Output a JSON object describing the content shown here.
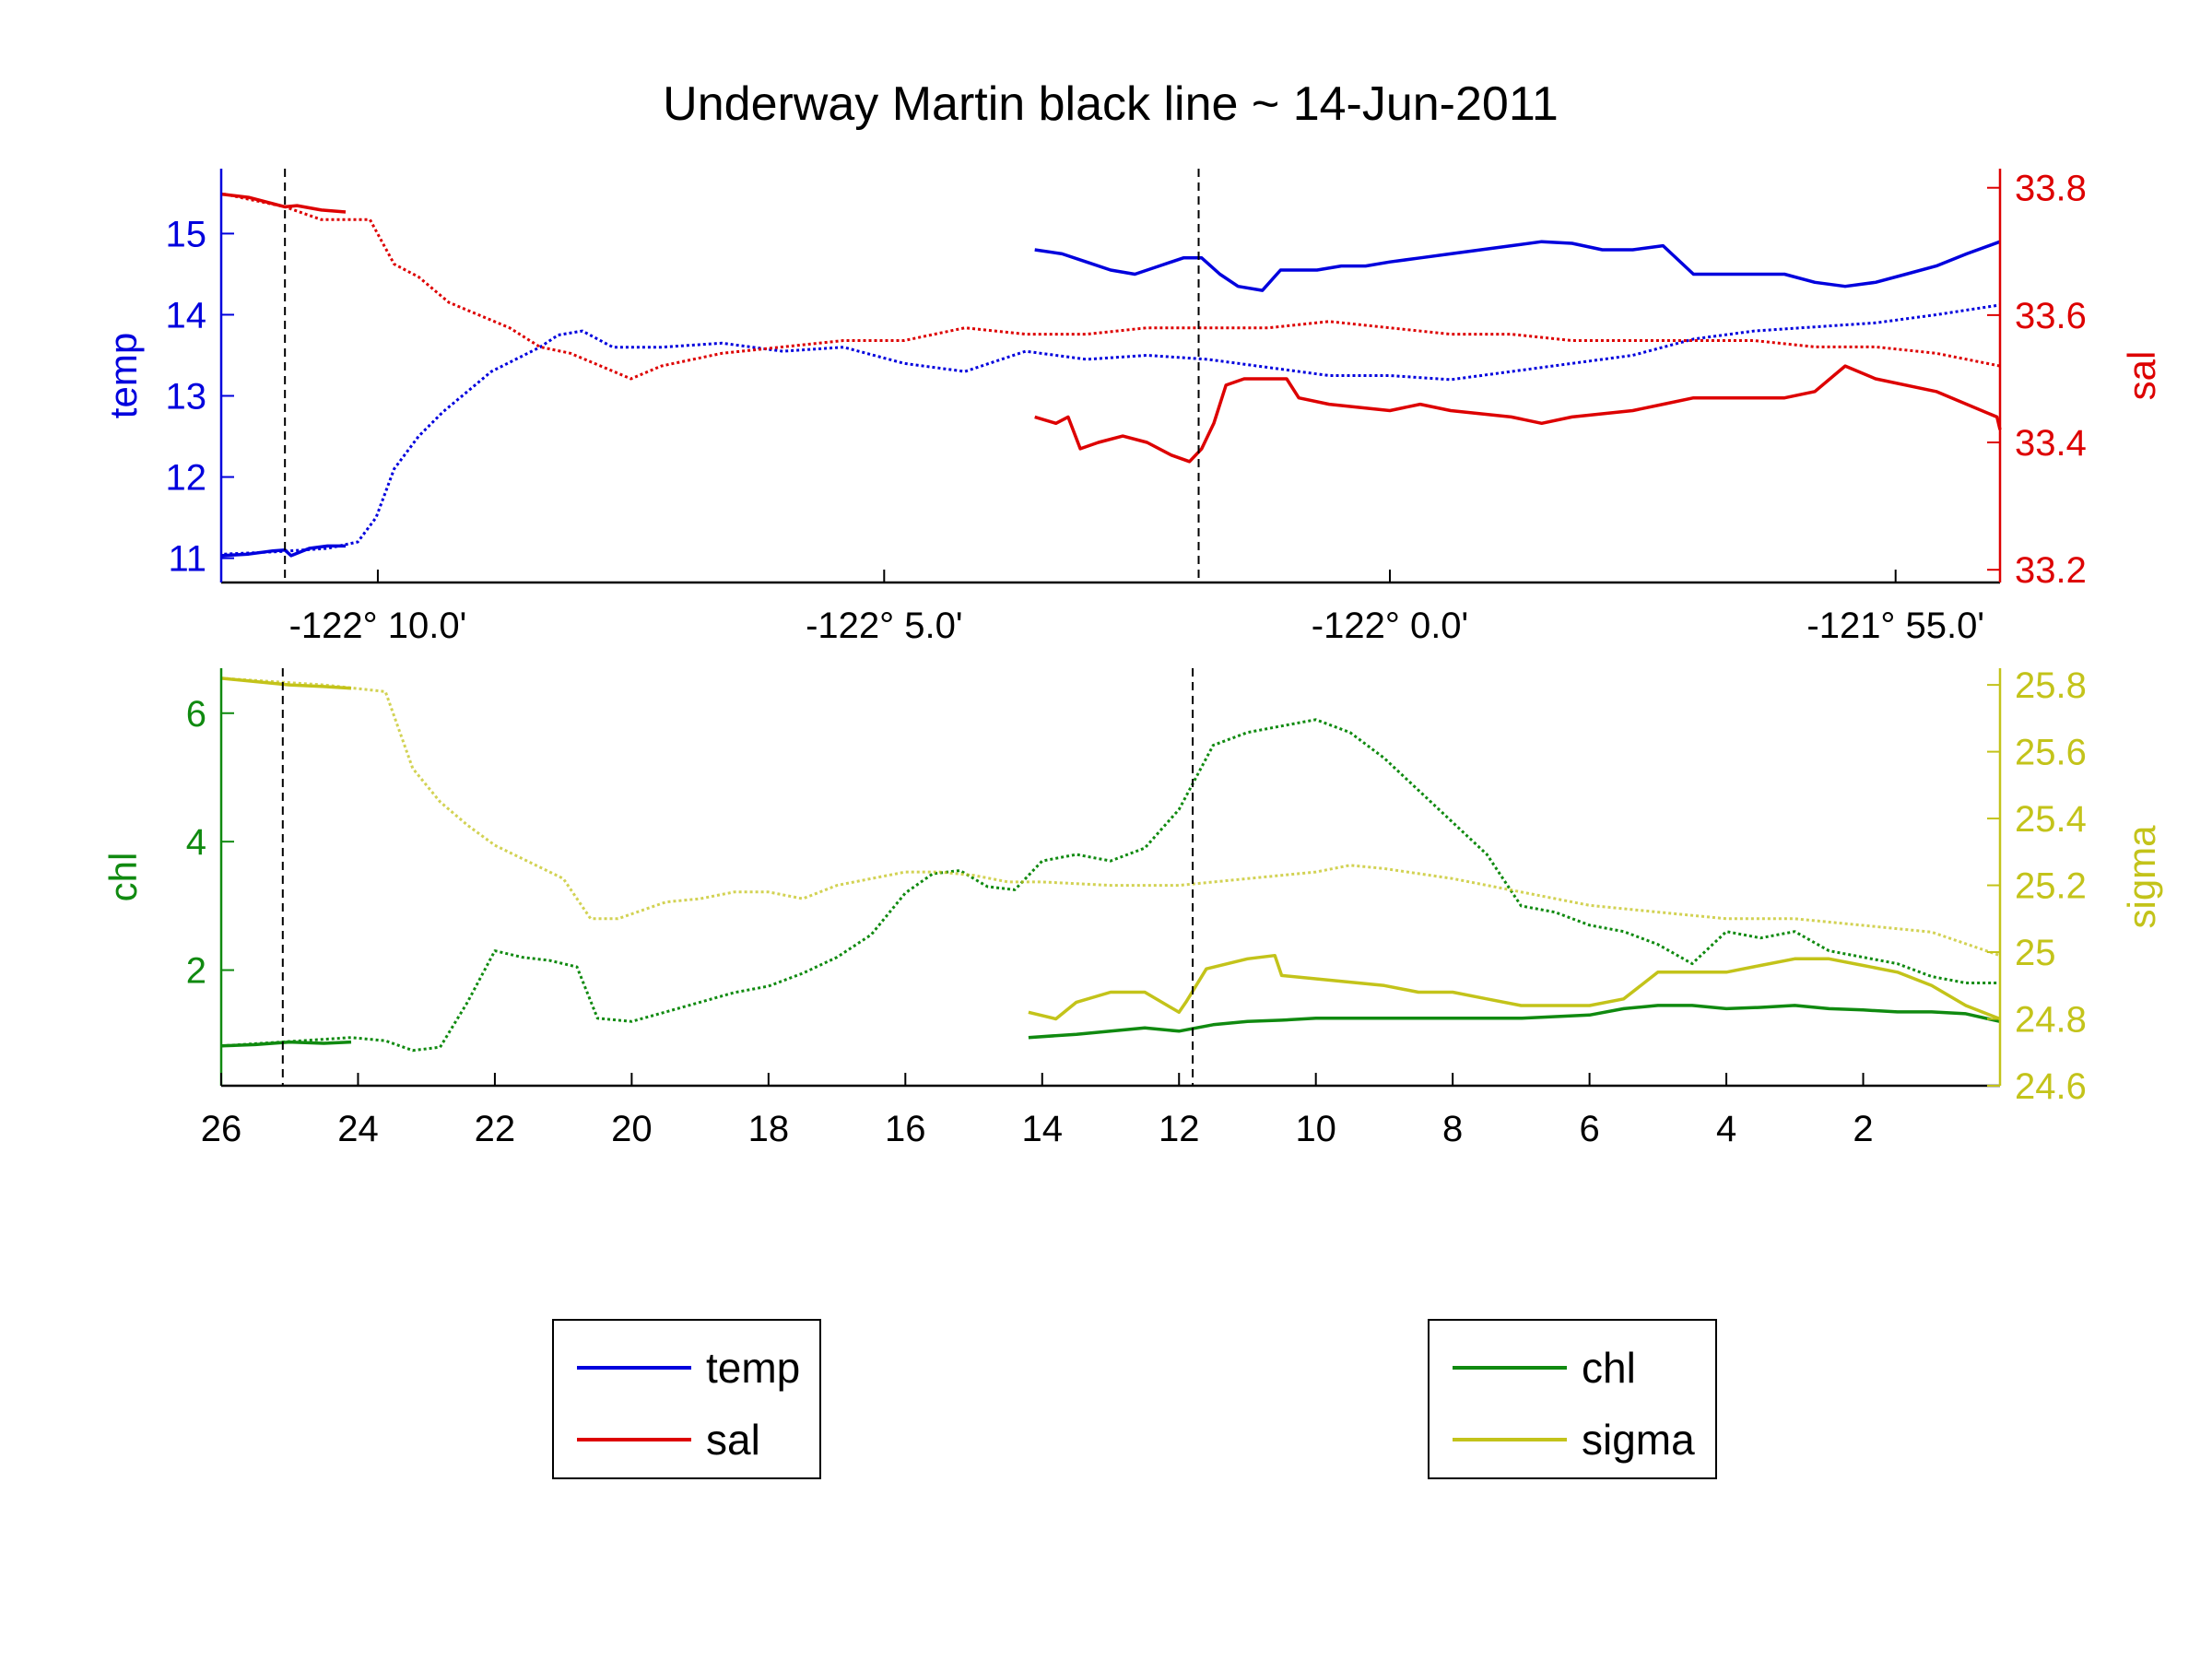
{
  "colors": {
    "temp": "#0000dd",
    "sal": "#dd0000",
    "chl": "#108a10",
    "sigma": "#c3c31a",
    "black": "#000000"
  },
  "chart_data": [
    {
      "type": "line",
      "title": "Underway Martin black line ~ 14-Jun-2011",
      "xlabel": "",
      "x_tick_labels": [
        "-122° 10.0'",
        "-122° 5.0'",
        "-122° 0.0'",
        "-121° 55.0'"
      ],
      "x_tick_values": [
        -122.1667,
        -122.0833,
        -122.0,
        -121.9167
      ],
      "xlim": [
        -122.1925,
        -121.8995
      ],
      "ylabel_left": "temp",
      "ylim_left": [
        10.7,
        15.8
      ],
      "yticks_left": [
        "11",
        "12",
        "13",
        "14",
        "15"
      ],
      "ylabel_right": "sal",
      "ylim_right": [
        33.18,
        33.83
      ],
      "yticks_right": [
        "33.2",
        "33.4",
        "33.6",
        "33.8"
      ],
      "vertical_markers": [
        -122.182,
        -122.0315
      ],
      "series": [
        {
          "name": "temp",
          "axis": "left",
          "style": "solid",
          "x": [
            -122.1925,
            -122.188,
            -122.184,
            -122.182,
            -122.181,
            -122.178,
            -122.175,
            -122.172
          ],
          "y": [
            11.03,
            11.05,
            11.09,
            11.1,
            11.03,
            11.12,
            11.15,
            11.15
          ]
        },
        {
          "name": "temp",
          "axis": "left",
          "style": "dotted",
          "x": [
            -122.192,
            -122.183,
            -122.175,
            -122.17,
            -122.167,
            -122.164,
            -122.16,
            -122.156,
            -122.152,
            -122.148,
            -122.144,
            -122.14,
            -122.137,
            -122.133,
            -122.128,
            -122.12,
            -122.11,
            -122.1,
            -122.09,
            -122.08,
            -122.07,
            -122.06,
            -122.05,
            -122.04,
            -122.03,
            -122.02,
            -122.01,
            -122.0,
            -121.99,
            -121.98,
            -121.97,
            -121.96,
            -121.955,
            -121.95,
            -121.94,
            -121.93,
            -121.92,
            -121.91,
            -121.8995
          ],
          "y": [
            11.05,
            11.08,
            11.12,
            11.2,
            11.5,
            12.1,
            12.5,
            12.8,
            13.05,
            13.3,
            13.45,
            13.6,
            13.75,
            13.8,
            13.6,
            13.6,
            13.65,
            13.55,
            13.6,
            13.4,
            13.3,
            13.55,
            13.45,
            13.5,
            13.45,
            13.35,
            13.25,
            13.25,
            13.2,
            13.3,
            13.4,
            13.5,
            13.6,
            13.7,
            13.8,
            13.85,
            13.9,
            14.0,
            14.12
          ]
        },
        {
          "name": "sal",
          "axis": "right",
          "style": "solid",
          "x": [
            -122.1925,
            -122.188,
            -122.184,
            -122.182,
            -122.18,
            -122.176,
            -122.172
          ],
          "y": [
            33.79,
            33.785,
            33.775,
            33.77,
            33.772,
            33.765,
            33.762
          ]
        },
        {
          "name": "sal",
          "axis": "right",
          "style": "dotted",
          "x": [
            -122.192,
            -122.182,
            -122.176,
            -122.168,
            -122.164,
            -122.16,
            -122.155,
            -122.15,
            -122.145,
            -122.14,
            -122.135,
            -122.13,
            -122.125,
            -122.12,
            -122.11,
            -122.1,
            -122.09,
            -122.08,
            -122.07,
            -122.06,
            -122.05,
            -122.04,
            -122.03,
            -122.02,
            -122.01,
            -122.0,
            -121.99,
            -121.98,
            -121.97,
            -121.96,
            -121.95,
            -121.94,
            -121.93,
            -121.92,
            -121.91,
            -121.8995
          ],
          "y": [
            33.79,
            33.77,
            33.75,
            33.75,
            33.68,
            33.66,
            33.62,
            33.6,
            33.58,
            33.55,
            33.54,
            33.52,
            33.5,
            33.52,
            33.54,
            33.55,
            33.56,
            33.56,
            33.58,
            33.57,
            33.57,
            33.58,
            33.58,
            33.58,
            33.59,
            33.58,
            33.57,
            33.57,
            33.56,
            33.56,
            33.56,
            33.56,
            33.55,
            33.55,
            33.54,
            33.52
          ]
        },
        {
          "name": "temp",
          "axis": "left",
          "style": "solid",
          "x": [
            -122.0585,
            -122.054,
            -122.05,
            -122.046,
            -122.042,
            -122.038,
            -122.034,
            -122.031,
            -122.028,
            -122.025,
            -122.021,
            -122.018,
            -122.015,
            -122.012,
            -122.008,
            -122.004,
            -122.0,
            -121.995,
            -121.99,
            -121.985,
            -121.98,
            -121.975,
            -121.97,
            -121.965,
            -121.96,
            -121.955,
            -121.95,
            -121.945,
            -121.94,
            -121.935,
            -121.93,
            -121.925,
            -121.92,
            -121.915,
            -121.91,
            -121.905,
            -121.8995
          ],
          "y": [
            14.8,
            14.75,
            14.65,
            14.55,
            14.5,
            14.6,
            14.7,
            14.7,
            14.5,
            14.35,
            14.3,
            14.55,
            14.55,
            14.55,
            14.6,
            14.6,
            14.65,
            14.7,
            14.75,
            14.8,
            14.85,
            14.9,
            14.88,
            14.8,
            14.8,
            14.85,
            14.5,
            14.5,
            14.5,
            14.5,
            14.4,
            14.35,
            14.4,
            14.5,
            14.6,
            14.75,
            14.9
          ]
        },
        {
          "name": "sal",
          "axis": "right",
          "style": "solid",
          "x": [
            -122.0585,
            -122.055,
            -122.053,
            -122.051,
            -122.048,
            -122.044,
            -122.04,
            -122.036,
            -122.033,
            -122.031,
            -122.029,
            -122.027,
            -122.024,
            -122.02,
            -122.017,
            -122.015,
            -122.01,
            -122.0,
            -121.995,
            -121.99,
            -121.98,
            -121.975,
            -121.97,
            -121.96,
            -121.955,
            -121.95,
            -121.945,
            -121.94,
            -121.935,
            -121.93,
            -121.925,
            -121.92,
            -121.91,
            -121.9,
            -121.8995
          ],
          "y": [
            33.44,
            33.43,
            33.44,
            33.39,
            33.4,
            33.41,
            33.4,
            33.38,
            33.37,
            33.39,
            33.43,
            33.49,
            33.5,
            33.5,
            33.5,
            33.47,
            33.46,
            33.45,
            33.46,
            33.45,
            33.44,
            33.43,
            33.44,
            33.45,
            33.46,
            33.47,
            33.47,
            33.47,
            33.47,
            33.48,
            33.52,
            33.5,
            33.48,
            33.44,
            33.42
          ]
        }
      ]
    },
    {
      "type": "line",
      "xlabel": "",
      "x_tick_labels": [
        "26",
        "24",
        "22",
        "20",
        "18",
        "16",
        "14",
        "12",
        "10",
        "8",
        "6",
        "4",
        "2"
      ],
      "x_tick_values": [
        26,
        24,
        22,
        20,
        18,
        16,
        14,
        12,
        10,
        8,
        6,
        4,
        2
      ],
      "xlim": [
        26,
        0
      ],
      "ylabel_left": "chl",
      "ylim_left": [
        0.2,
        6.7
      ],
      "yticks_left": [
        "2",
        "4",
        "6"
      ],
      "ylabel_right": "sigma",
      "ylim_right": [
        24.6,
        25.85
      ],
      "yticks_right": [
        "24.6",
        "24.8",
        "25",
        "25.2",
        "25.4",
        "25.6",
        "25.8"
      ],
      "vertical_markers": [
        25.1,
        11.8
      ],
      "series": [
        {
          "name": "chl",
          "axis": "left",
          "style": "solid",
          "x": [
            26,
            25.5,
            25,
            24.5,
            24.1
          ],
          "y": [
            0.82,
            0.84,
            0.88,
            0.86,
            0.88
          ]
        },
        {
          "name": "chl",
          "axis": "left",
          "style": "dotted",
          "x": [
            26,
            24.1,
            23.6,
            23.2,
            22.8,
            22.4,
            22.0,
            21.6,
            21.2,
            20.8,
            20.5,
            20.0,
            19.5,
            19.0,
            18.5,
            18.0,
            17.5,
            17.0,
            16.5,
            16.0,
            15.6,
            15.2,
            14.8,
            14.4,
            14.0,
            13.5,
            13.0,
            12.5,
            12.0,
            11.5,
            11.0,
            10.5,
            10.0,
            9.5,
            9.0,
            8.5,
            8.0,
            7.5,
            7.0,
            6.5,
            6.0,
            5.5,
            5.0,
            4.5,
            4.0,
            3.5,
            3.0,
            2.5,
            2.0,
            1.5,
            1.0,
            0.5,
            0
          ],
          "y": [
            0.82,
            0.95,
            0.9,
            0.75,
            0.8,
            1.5,
            2.3,
            2.2,
            2.15,
            2.05,
            1.25,
            1.2,
            1.35,
            1.5,
            1.65,
            1.75,
            1.95,
            2.2,
            2.55,
            3.2,
            3.5,
            3.55,
            3.3,
            3.25,
            3.7,
            3.8,
            3.7,
            3.9,
            4.5,
            5.5,
            5.7,
            5.8,
            5.9,
            5.7,
            5.3,
            4.8,
            4.3,
            3.8,
            3.0,
            2.9,
            2.7,
            2.6,
            2.4,
            2.1,
            2.6,
            2.5,
            2.6,
            2.3,
            2.2,
            2.1,
            1.9,
            1.8,
            1.8
          ]
        },
        {
          "name": "sigma",
          "axis": "right",
          "style": "solid",
          "x": [
            26,
            25.5,
            25,
            24.5,
            24.1
          ],
          "y": [
            25.82,
            25.81,
            25.8,
            25.795,
            25.79
          ]
        },
        {
          "name": "sigma",
          "axis": "right",
          "style": "dotted",
          "x": [
            26,
            24.5,
            23.6,
            23.2,
            22.8,
            22.4,
            22.0,
            21.5,
            21.0,
            20.6,
            20.2,
            19.5,
            19.0,
            18.5,
            18.0,
            17.5,
            17.0,
            16.5,
            16.0,
            15.5,
            15.0,
            14.5,
            14.0,
            13.0,
            12.0,
            11.0,
            10.0,
            9.5,
            9.0,
            8.0,
            7.0,
            6.0,
            5.0,
            4.0,
            3.0,
            2.0,
            1.0,
            0
          ],
          "y": [
            25.82,
            25.8,
            25.78,
            25.55,
            25.45,
            25.38,
            25.32,
            25.27,
            25.22,
            25.1,
            25.1,
            25.15,
            25.16,
            25.18,
            25.18,
            25.16,
            25.2,
            25.22,
            25.24,
            25.24,
            25.23,
            25.21,
            25.21,
            25.2,
            25.2,
            25.22,
            25.24,
            25.26,
            25.25,
            25.22,
            25.18,
            25.14,
            25.12,
            25.1,
            25.1,
            25.08,
            25.06,
            24.99
          ]
        },
        {
          "name": "chl",
          "axis": "left",
          "style": "solid",
          "x": [
            14.2,
            13.5,
            13.0,
            12.5,
            12.0,
            11.5,
            11.0,
            10.5,
            10.0,
            9.0,
            8.0,
            7.0,
            6.0,
            5.5,
            5.0,
            4.5,
            4.0,
            3.5,
            3.0,
            2.5,
            2.0,
            1.5,
            1.0,
            0.5,
            0
          ],
          "y": [
            0.95,
            1.0,
            1.05,
            1.1,
            1.05,
            1.15,
            1.2,
            1.22,
            1.25,
            1.25,
            1.25,
            1.25,
            1.3,
            1.4,
            1.45,
            1.45,
            1.4,
            1.42,
            1.45,
            1.4,
            1.38,
            1.35,
            1.35,
            1.32,
            1.2
          ]
        },
        {
          "name": "sigma",
          "axis": "right",
          "style": "solid",
          "x": [
            14.2,
            13.8,
            13.5,
            13.0,
            12.5,
            12.0,
            11.9,
            11.6,
            11.0,
            10.6,
            10.5,
            10.0,
            9.0,
            8.5,
            8.0,
            7.5,
            7.0,
            6.5,
            6.0,
            5.5,
            5.0,
            4.5,
            4.0,
            3.5,
            3.0,
            2.5,
            2.0,
            1.5,
            1.0,
            0.5,
            0
          ],
          "y": [
            24.82,
            24.8,
            24.85,
            24.88,
            24.88,
            24.82,
            24.85,
            24.95,
            24.98,
            24.99,
            24.93,
            24.92,
            24.9,
            24.88,
            24.88,
            24.86,
            24.84,
            24.84,
            24.84,
            24.86,
            24.94,
            24.94,
            24.94,
            24.96,
            24.98,
            24.98,
            24.96,
            24.94,
            24.9,
            24.84,
            24.8
          ]
        }
      ]
    }
  ],
  "legends": [
    {
      "entries": [
        {
          "label": "temp",
          "color_key": "temp"
        },
        {
          "label": "sal",
          "color_key": "sal"
        }
      ]
    },
    {
      "entries": [
        {
          "label": "chl",
          "color_key": "chl"
        },
        {
          "label": "sigma",
          "color_key": "sigma"
        }
      ]
    }
  ]
}
